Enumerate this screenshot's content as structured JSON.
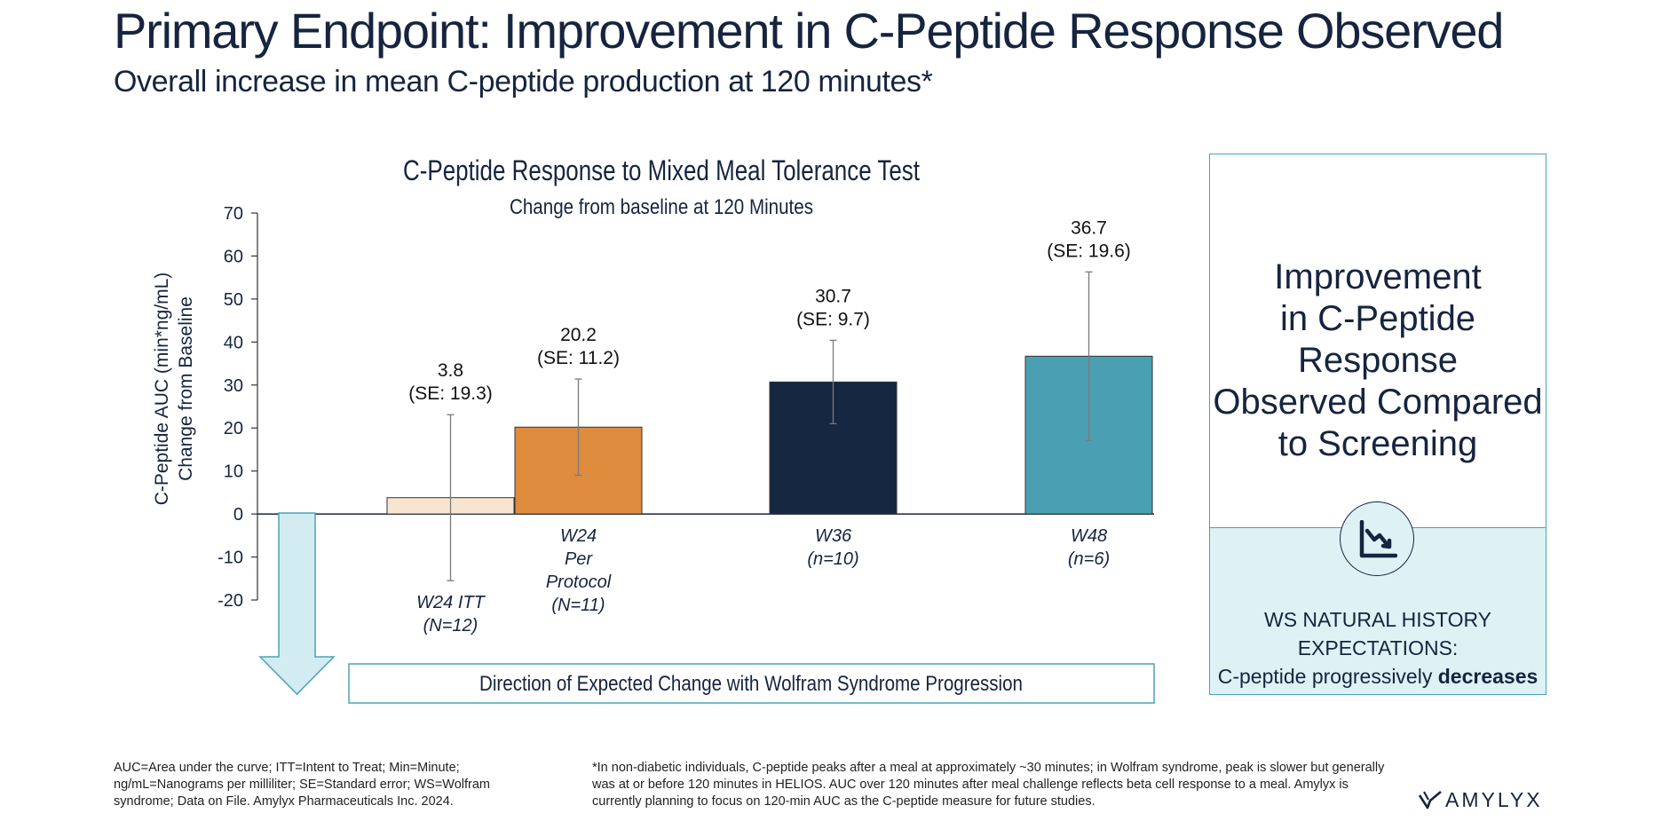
{
  "header": {
    "title": "Primary Endpoint: Improvement in C-Peptide Response Observed",
    "subtitle": "Overall increase in mean C-peptide production at 120 minutes*"
  },
  "chart_data": {
    "type": "bar",
    "title": "C-Peptide Response to Mixed Meal Tolerance Test",
    "subtitle": "Change from baseline at 120 Minutes",
    "ylabel_line1": "C-Peptide AUC (min*ng/mL)",
    "ylabel_line2": "Change from Baseline",
    "ylim": [
      -20,
      70
    ],
    "yticks": [
      70,
      60,
      50,
      40,
      30,
      20,
      10,
      0,
      -10,
      -20
    ],
    "grid": false,
    "bars": [
      {
        "value": 3.8,
        "se": 19.3,
        "value_label": "3.8",
        "se_label": "(SE: 19.3)",
        "category": [
          "W24 ITT",
          "(N=12)"
        ],
        "color": "#f7e5d0"
      },
      {
        "value": 20.2,
        "se": 11.2,
        "value_label": "20.2",
        "se_label": "(SE: 11.2)",
        "category": [
          "W24",
          "Per",
          "Protocol",
          "(N=11)"
        ],
        "color": "#de8b3d"
      },
      {
        "value": 30.7,
        "se": 9.7,
        "value_label": "30.7",
        "se_label": "(SE: 9.7)",
        "category": [
          "W36",
          "(n=10)"
        ],
        "color": "#152741"
      },
      {
        "value": 36.7,
        "se": 19.6,
        "value_label": "36.7",
        "se_label": "(SE: 19.6)",
        "category": [
          "W48",
          "(n=6)"
        ],
        "color": "#4aa0b2"
      }
    ],
    "direction_label": "Direction of Expected Change with Wolfram Syndrome Progression"
  },
  "side_panel": {
    "heading_lines": [
      "Improvement",
      "in C-Peptide Response",
      "Observed Compared",
      "to Screening"
    ],
    "icon": "declining-trend-chart-icon",
    "note_line1": "WS NATURAL HISTORY EXPECTATIONS:",
    "note_line2_prefix": "C-peptide progressively ",
    "note_line2_bold": "decreases"
  },
  "footnotes": {
    "left": "AUC=Area under the curve; ITT=Intent to Treat; Min=Minute; ng/mL=Nanograms per milliliter; SE=Standard error; WS=Wolfram syndrome; Data on File. Amylyx Pharmaceuticals Inc. 2024.",
    "right": "*In non-diabetic individuals, C-peptide peaks after a meal at approximately ~30 minutes; in Wolfram syndrome, peak is slower but generally was at or before 120 minutes in HELIOS. AUC over 120 minutes after meal challenge reflects beta cell response to a meal. Amylyx is currently planning to focus on 120-min AUC as the C-peptide measure for future studies."
  },
  "logo": {
    "text": "AMYLYX"
  },
  "colors": {
    "navy": "#16243f",
    "teal": "#4aa3b3",
    "light_teal": "#def2f5",
    "arrow_fill": "#d2ecf1"
  }
}
